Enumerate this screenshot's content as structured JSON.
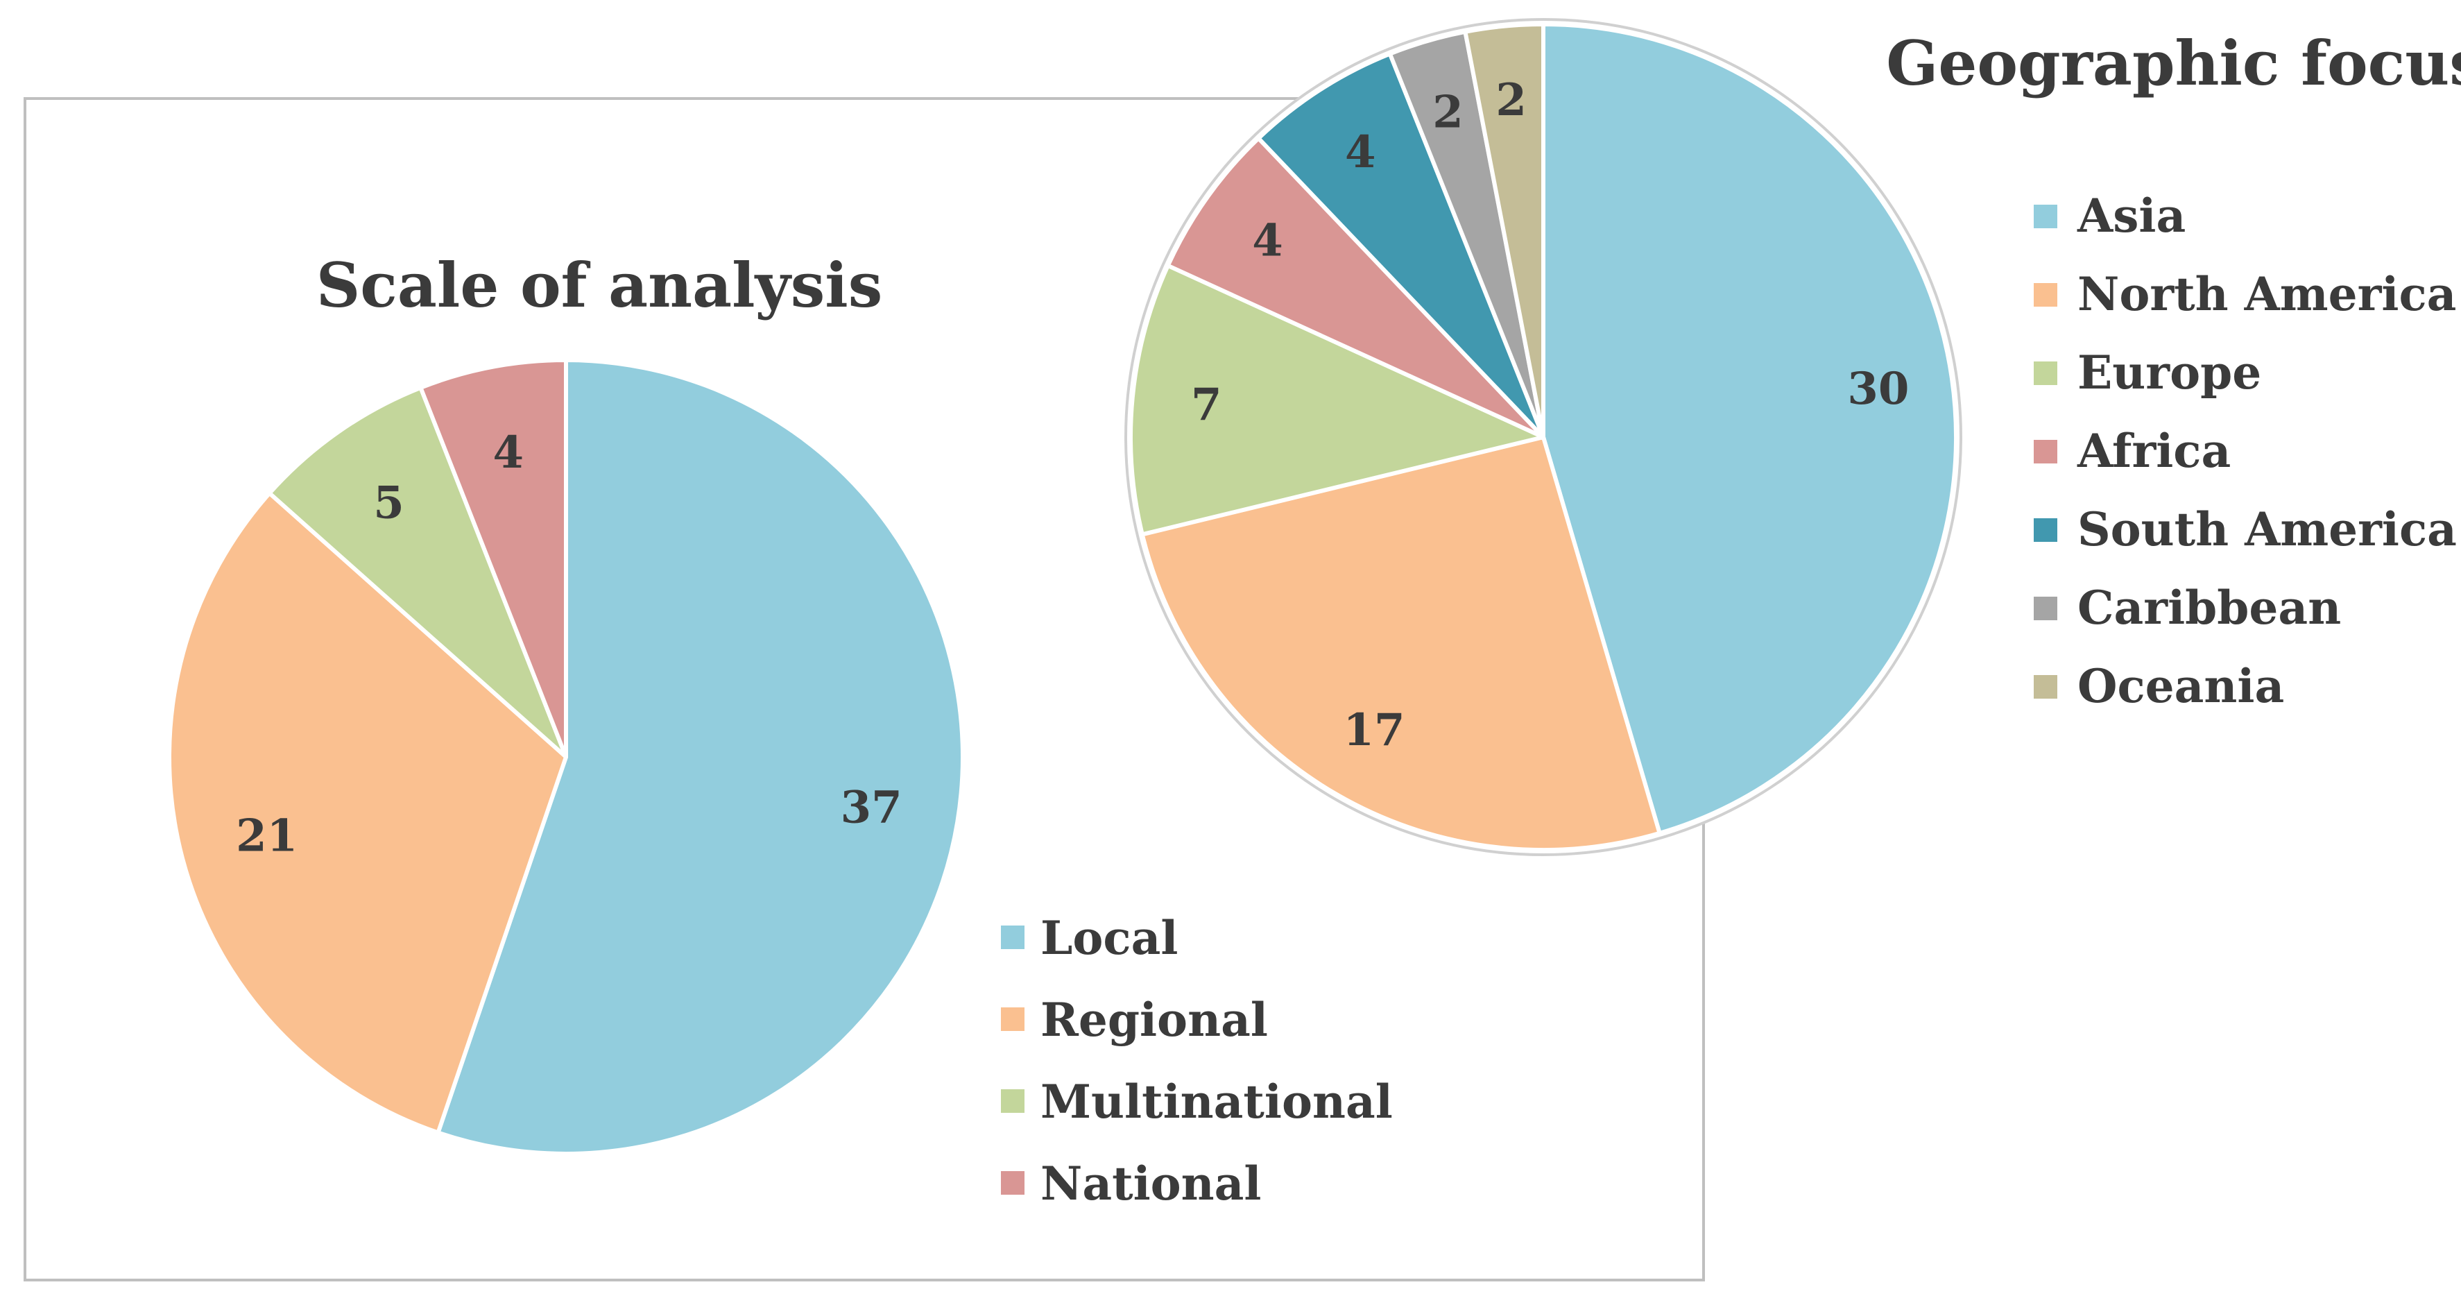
{
  "chart_data": [
    {
      "type": "pie",
      "title": "Scale of analysis",
      "categories": [
        "Local",
        "Regional",
        "Multinational",
        "National"
      ],
      "values": [
        37,
        21,
        5,
        4
      ],
      "colors": [
        "#92cddd",
        "#fac090",
        "#c3d69b",
        "#d99694"
      ],
      "legend_position": "bottom-right"
    },
    {
      "type": "pie",
      "title": "Geographic focus",
      "categories": [
        "Asia",
        "North America",
        "Europe",
        "Africa",
        "South America",
        "Caribbean",
        "Oceania"
      ],
      "values": [
        30,
        17,
        7,
        4,
        4,
        2,
        2
      ],
      "colors": [
        "#92cddd",
        "#fac090",
        "#c3d69b",
        "#d99694",
        "#4198af",
        "#a5a5a5",
        "#c4bd97"
      ],
      "legend_position": "right"
    }
  ]
}
